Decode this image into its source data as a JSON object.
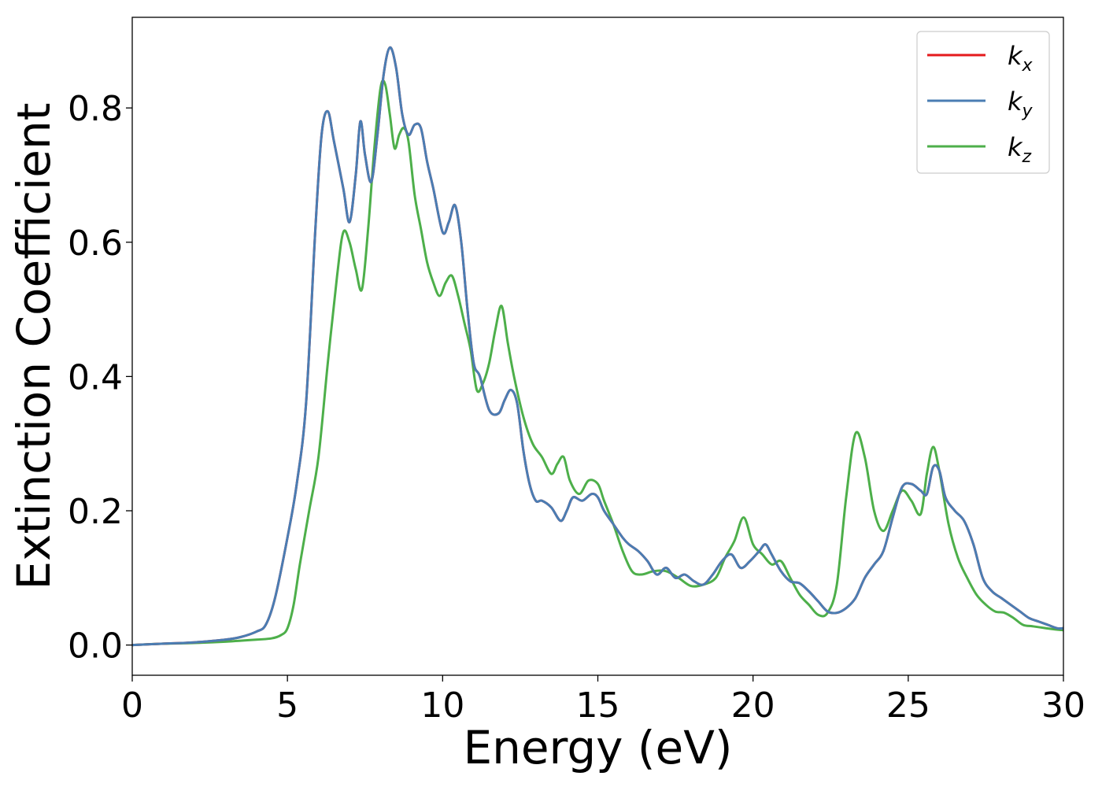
{
  "chart_data": {
    "type": "line",
    "title": "",
    "xlabel": "Energy (eV)",
    "ylabel": "Extinction Coefficient",
    "xlim": [
      0,
      30
    ],
    "ylim": [
      -0.045,
      0.935
    ],
    "xticks": [
      0,
      5,
      10,
      15,
      20,
      25,
      30
    ],
    "yticks": [
      0.0,
      0.2,
      0.4,
      0.6,
      0.8
    ],
    "grid": false,
    "legend_position": "top-right",
    "series": [
      {
        "name": "k_x",
        "symbol": "k",
        "subscript": "x",
        "color": "#e41a1c",
        "x": [
          0,
          1,
          2,
          3,
          3.5,
          4,
          4.3,
          4.6,
          5,
          5.3,
          5.6,
          5.9,
          6.1,
          6.3,
          6.5,
          6.8,
          7,
          7.2,
          7.35,
          7.5,
          7.7,
          7.9,
          8.1,
          8.3,
          8.5,
          8.7,
          8.9,
          9.1,
          9.3,
          9.5,
          9.7,
          10,
          10.2,
          10.4,
          10.6,
          10.8,
          11,
          11.2,
          11.5,
          11.8,
          12,
          12.2,
          12.4,
          12.6,
          12.8,
          13,
          13.2,
          13.5,
          13.8,
          14,
          14.2,
          14.5,
          14.8,
          15,
          15.2,
          15.5,
          15.8,
          16,
          16.3,
          16.6,
          16.9,
          17.2,
          17.5,
          17.8,
          18.1,
          18.4,
          18.7,
          19,
          19.3,
          19.6,
          19.9,
          20.2,
          20.4,
          20.6,
          20.9,
          21.2,
          21.5,
          21.8,
          22.1,
          22.4,
          22.7,
          23,
          23.3,
          23.6,
          23.9,
          24.2,
          24.5,
          24.8,
          25.1,
          25.4,
          25.6,
          25.8,
          26,
          26.2,
          26.5,
          26.8,
          27.1,
          27.4,
          27.7,
          28,
          28.3,
          28.6,
          28.9,
          29.2,
          29.5,
          29.8,
          30
        ],
        "y": [
          0,
          0.002,
          0.004,
          0.008,
          0.012,
          0.02,
          0.03,
          0.07,
          0.16,
          0.24,
          0.36,
          0.62,
          0.76,
          0.795,
          0.75,
          0.68,
          0.63,
          0.7,
          0.78,
          0.73,
          0.69,
          0.76,
          0.85,
          0.89,
          0.86,
          0.79,
          0.76,
          0.775,
          0.77,
          0.72,
          0.68,
          0.615,
          0.63,
          0.655,
          0.6,
          0.5,
          0.42,
          0.4,
          0.35,
          0.345,
          0.365,
          0.38,
          0.36,
          0.29,
          0.24,
          0.215,
          0.215,
          0.205,
          0.185,
          0.2,
          0.22,
          0.215,
          0.225,
          0.22,
          0.2,
          0.18,
          0.16,
          0.15,
          0.14,
          0.125,
          0.105,
          0.115,
          0.1,
          0.105,
          0.095,
          0.09,
          0.105,
          0.125,
          0.135,
          0.115,
          0.125,
          0.14,
          0.15,
          0.135,
          0.11,
          0.095,
          0.092,
          0.08,
          0.065,
          0.05,
          0.048,
          0.055,
          0.07,
          0.1,
          0.12,
          0.14,
          0.19,
          0.235,
          0.24,
          0.23,
          0.225,
          0.265,
          0.26,
          0.22,
          0.2,
          0.185,
          0.15,
          0.1,
          0.08,
          0.07,
          0.06,
          0.05,
          0.04,
          0.035,
          0.03,
          0.025,
          0.025
        ]
      },
      {
        "name": "k_y",
        "symbol": "k",
        "subscript": "y",
        "color": "#4a7db3",
        "x": [
          0,
          1,
          2,
          3,
          3.5,
          4,
          4.3,
          4.6,
          5,
          5.3,
          5.6,
          5.9,
          6.1,
          6.3,
          6.5,
          6.8,
          7,
          7.2,
          7.35,
          7.5,
          7.7,
          7.9,
          8.1,
          8.3,
          8.5,
          8.7,
          8.9,
          9.1,
          9.3,
          9.5,
          9.7,
          10,
          10.2,
          10.4,
          10.6,
          10.8,
          11,
          11.2,
          11.5,
          11.8,
          12,
          12.2,
          12.4,
          12.6,
          12.8,
          13,
          13.2,
          13.5,
          13.8,
          14,
          14.2,
          14.5,
          14.8,
          15,
          15.2,
          15.5,
          15.8,
          16,
          16.3,
          16.6,
          16.9,
          17.2,
          17.5,
          17.8,
          18.1,
          18.4,
          18.7,
          19,
          19.3,
          19.6,
          19.9,
          20.2,
          20.4,
          20.6,
          20.9,
          21.2,
          21.5,
          21.8,
          22.1,
          22.4,
          22.7,
          23,
          23.3,
          23.6,
          23.9,
          24.2,
          24.5,
          24.8,
          25.1,
          25.4,
          25.6,
          25.8,
          26,
          26.2,
          26.5,
          26.8,
          27.1,
          27.4,
          27.7,
          28,
          28.3,
          28.6,
          28.9,
          29.2,
          29.5,
          29.8,
          30
        ],
        "y": [
          0,
          0.002,
          0.004,
          0.008,
          0.012,
          0.02,
          0.03,
          0.07,
          0.16,
          0.24,
          0.36,
          0.62,
          0.76,
          0.795,
          0.75,
          0.68,
          0.63,
          0.7,
          0.78,
          0.73,
          0.69,
          0.76,
          0.85,
          0.89,
          0.86,
          0.79,
          0.76,
          0.775,
          0.77,
          0.72,
          0.68,
          0.615,
          0.63,
          0.655,
          0.6,
          0.5,
          0.42,
          0.4,
          0.35,
          0.345,
          0.365,
          0.38,
          0.36,
          0.29,
          0.24,
          0.215,
          0.215,
          0.205,
          0.185,
          0.2,
          0.22,
          0.215,
          0.225,
          0.22,
          0.2,
          0.18,
          0.16,
          0.15,
          0.14,
          0.125,
          0.105,
          0.115,
          0.1,
          0.105,
          0.095,
          0.09,
          0.105,
          0.125,
          0.135,
          0.115,
          0.125,
          0.14,
          0.15,
          0.135,
          0.11,
          0.095,
          0.092,
          0.08,
          0.065,
          0.05,
          0.048,
          0.055,
          0.07,
          0.1,
          0.12,
          0.14,
          0.19,
          0.235,
          0.24,
          0.23,
          0.225,
          0.265,
          0.26,
          0.22,
          0.2,
          0.185,
          0.15,
          0.1,
          0.08,
          0.07,
          0.06,
          0.05,
          0.04,
          0.035,
          0.03,
          0.025,
          0.025
        ]
      },
      {
        "name": "k_z",
        "symbol": "k",
        "subscript": "z",
        "color": "#4daf4a",
        "x": [
          0,
          1,
          2,
          3,
          4,
          4.5,
          4.8,
          5,
          5.2,
          5.4,
          5.7,
          6,
          6.3,
          6.6,
          6.8,
          7,
          7.2,
          7.4,
          7.6,
          7.8,
          8,
          8.15,
          8.3,
          8.45,
          8.6,
          8.75,
          8.9,
          9.1,
          9.3,
          9.5,
          9.7,
          9.9,
          10.1,
          10.3,
          10.5,
          10.7,
          10.9,
          11.1,
          11.3,
          11.5,
          11.7,
          11.9,
          12.1,
          12.3,
          12.6,
          12.9,
          13.2,
          13.5,
          13.7,
          13.9,
          14.1,
          14.4,
          14.7,
          15,
          15.2,
          15.5,
          15.8,
          16.1,
          16.4,
          16.8,
          17.2,
          17.6,
          18,
          18.4,
          18.8,
          19.1,
          19.4,
          19.7,
          20,
          20.3,
          20.6,
          20.9,
          21.2,
          21.5,
          21.8,
          22.1,
          22.4,
          22.7,
          23,
          23.3,
          23.6,
          23.9,
          24.2,
          24.5,
          24.8,
          25.1,
          25.4,
          25.6,
          25.8,
          26,
          26.3,
          26.6,
          26.9,
          27.2,
          27.5,
          27.8,
          28.1,
          28.4,
          28.7,
          29,
          29.3,
          29.6,
          30
        ],
        "y": [
          0,
          0.002,
          0.003,
          0.005,
          0.008,
          0.01,
          0.015,
          0.025,
          0.06,
          0.12,
          0.2,
          0.28,
          0.42,
          0.55,
          0.615,
          0.6,
          0.56,
          0.53,
          0.62,
          0.74,
          0.83,
          0.835,
          0.79,
          0.74,
          0.76,
          0.77,
          0.75,
          0.67,
          0.62,
          0.57,
          0.54,
          0.52,
          0.54,
          0.55,
          0.52,
          0.48,
          0.44,
          0.38,
          0.39,
          0.42,
          0.47,
          0.505,
          0.45,
          0.4,
          0.34,
          0.3,
          0.28,
          0.255,
          0.27,
          0.28,
          0.245,
          0.225,
          0.245,
          0.24,
          0.215,
          0.18,
          0.14,
          0.11,
          0.105,
          0.11,
          0.11,
          0.1,
          0.088,
          0.09,
          0.1,
          0.13,
          0.155,
          0.19,
          0.15,
          0.135,
          0.12,
          0.125,
          0.1,
          0.075,
          0.06,
          0.045,
          0.048,
          0.09,
          0.22,
          0.315,
          0.28,
          0.2,
          0.17,
          0.2,
          0.23,
          0.215,
          0.195,
          0.255,
          0.295,
          0.26,
          0.18,
          0.13,
          0.1,
          0.075,
          0.06,
          0.05,
          0.048,
          0.04,
          0.03,
          0.028,
          0.026,
          0.024,
          0.022
        ]
      }
    ]
  }
}
